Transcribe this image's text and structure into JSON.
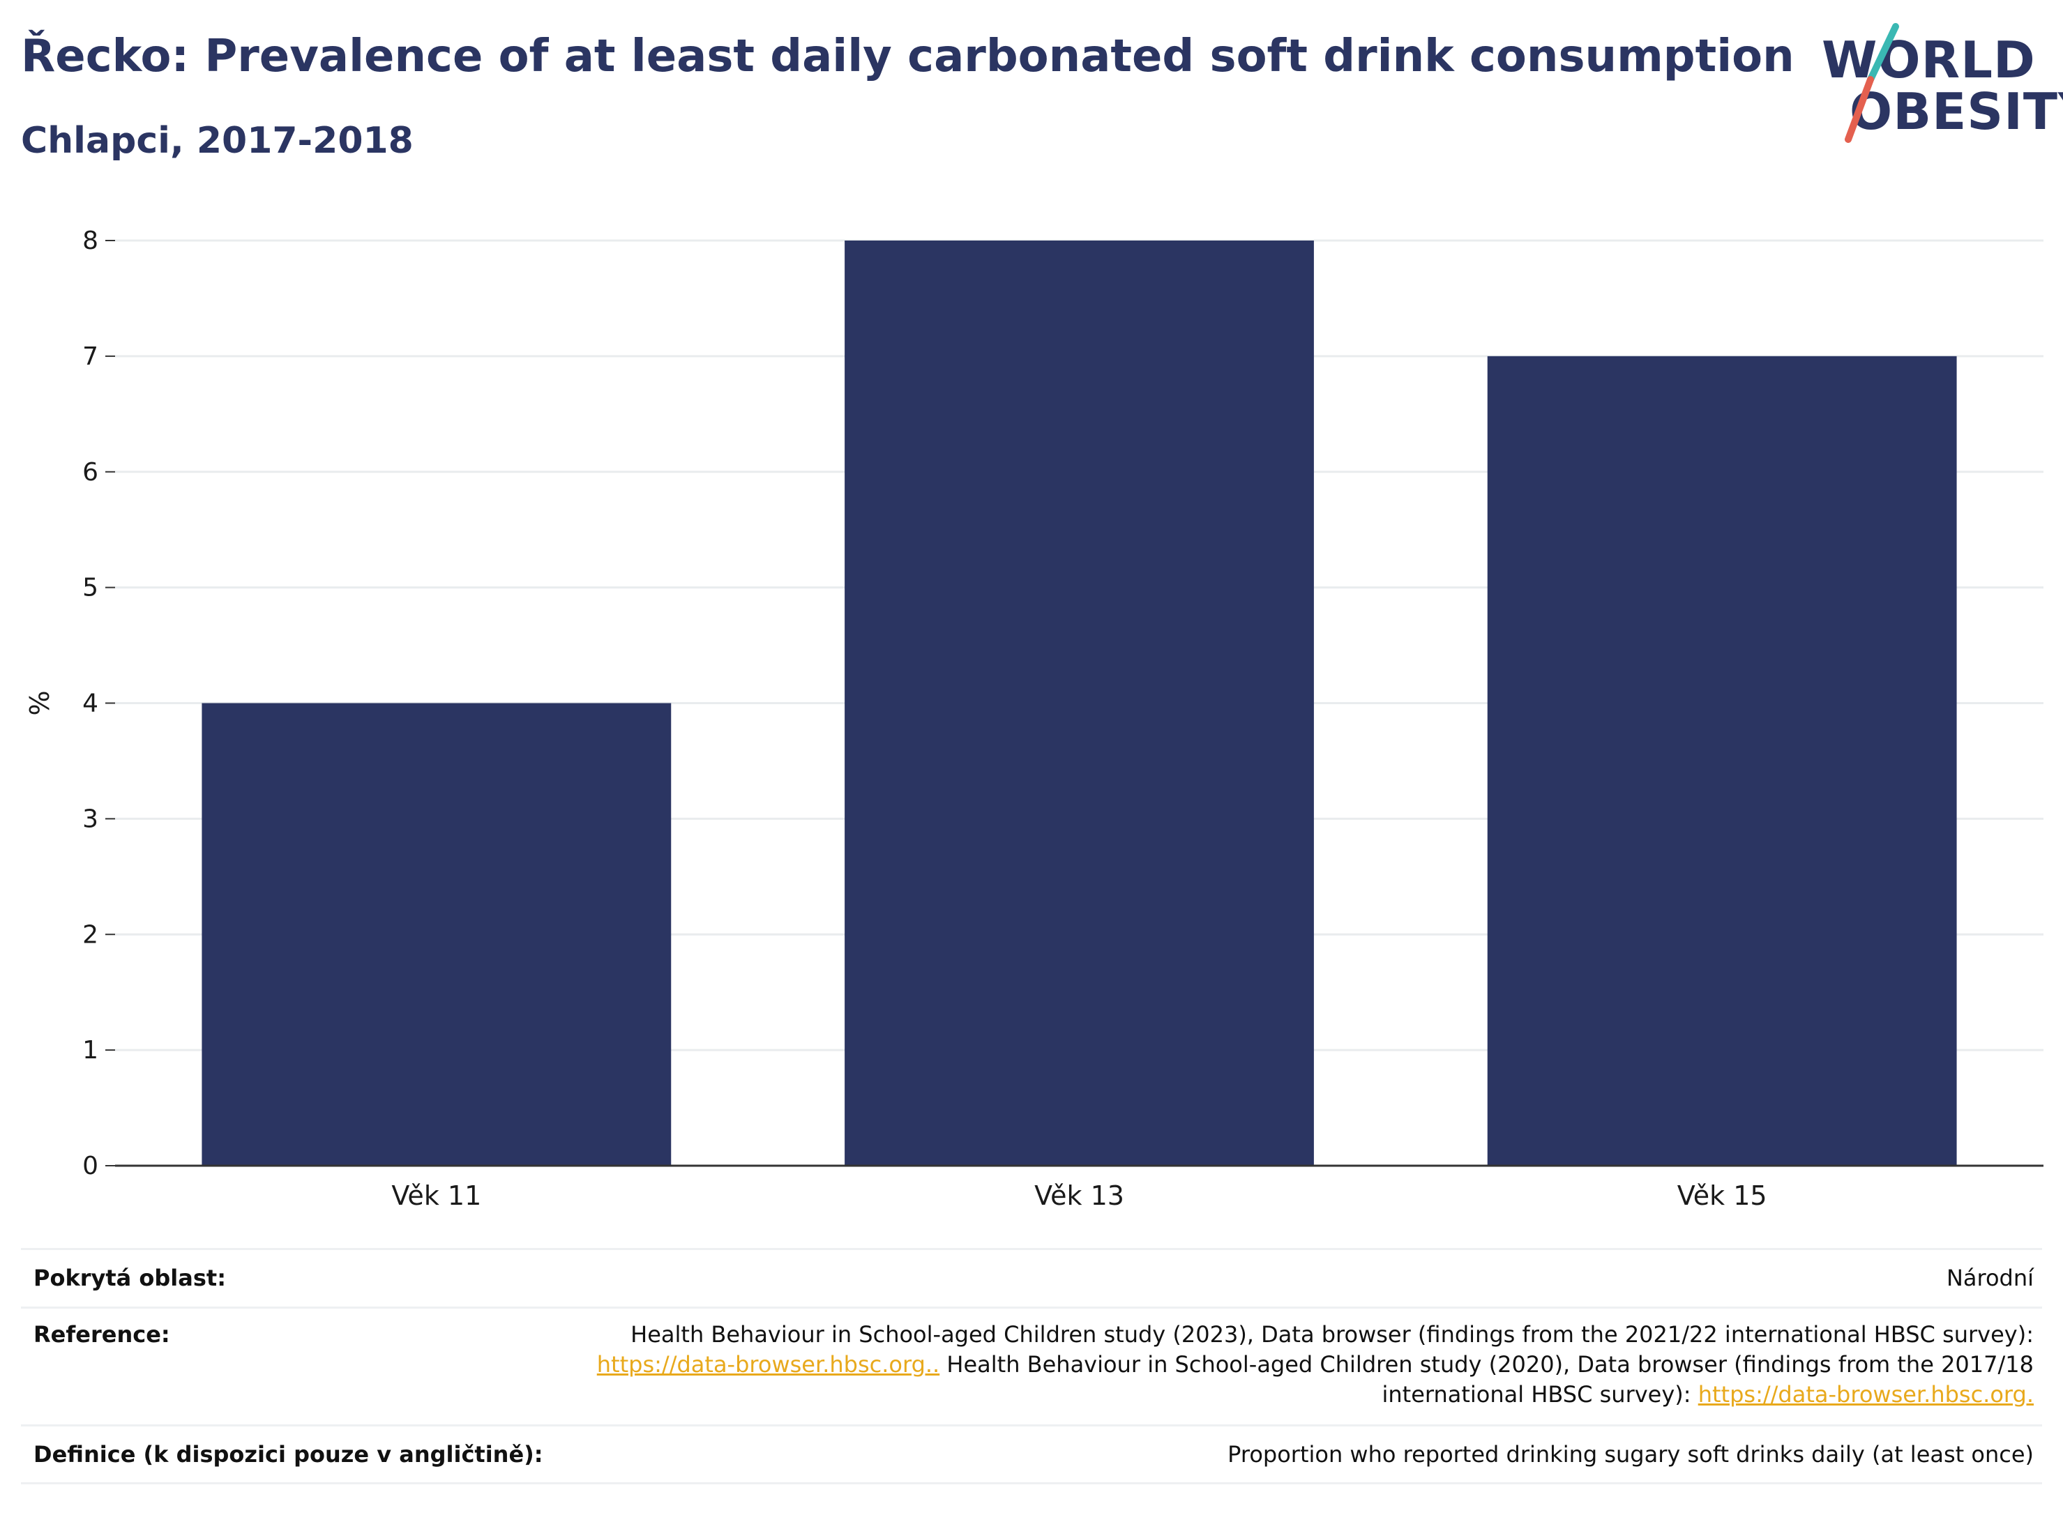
{
  "header": {
    "title": "Řecko: Prevalence of at least daily carbonated soft drink consumption",
    "subtitle": "Chlapci, 2017-2018"
  },
  "logo": {
    "line1": "WORLD",
    "line2": "OBESITY",
    "colors": {
      "text": "#2b3562",
      "slash_top": "#3ab8b3",
      "slash_bottom": "#e4604f"
    }
  },
  "colors": {
    "bar": "#2b3562",
    "grid": "#e9ecee",
    "axis": "#333333",
    "link": "#e8a91c"
  },
  "chart_data": {
    "type": "bar",
    "categories": [
      "Věk 11",
      "Věk 13",
      "Věk 15"
    ],
    "values": [
      4,
      8,
      7
    ],
    "ylabel": "%",
    "xlabel": "",
    "ylim": [
      0,
      8
    ],
    "yticks": [
      0,
      1,
      2,
      3,
      4,
      5,
      6,
      7,
      8
    ],
    "grid": true,
    "legend": "none"
  },
  "footer": {
    "coverage_label": "Pokrytá oblast:",
    "coverage_value": "Národní",
    "reference_label": "Reference:",
    "reference_line1": "Health Behaviour in School-aged Children study (2023), Data browser (findings from the 2021/22 international HBSC survey):",
    "reference_link1": "https://data-browser.hbsc.org..",
    "reference_line2": " Health Behaviour in School-aged Children study (2020), Data browser (findings from the 2017/18",
    "reference_line3": "international HBSC survey): ",
    "reference_link2": "https://data-browser.hbsc.org.",
    "definition_label": "Definice (k dispozici pouze v angličtině):",
    "definition_value": "Proportion who reported drinking sugary soft drinks daily (at least once)"
  }
}
